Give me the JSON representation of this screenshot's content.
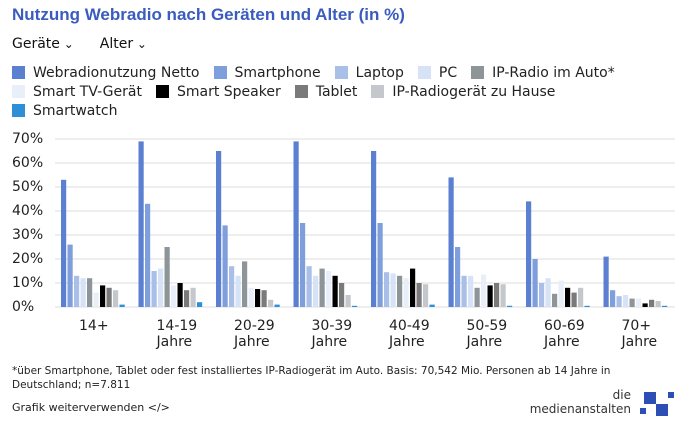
{
  "chart_data": {
    "type": "bar",
    "title": "Nutzung Webradio nach Geräten und Alter (in %)",
    "categories": [
      "14+",
      "14-19 Jahre",
      "20-29 Jahre",
      "30-39 Jahre",
      "40-49 Jahre",
      "50-59 Jahre",
      "60-69 Jahre",
      "70+ Jahre"
    ],
    "series": [
      {
        "name": "Webradionutzung Netto",
        "color": "#5b7fd1",
        "values": [
          53,
          69,
          65,
          69,
          65,
          54,
          44,
          21
        ]
      },
      {
        "name": "Smartphone",
        "color": "#7f9fdc",
        "values": [
          26,
          43,
          34,
          35,
          35,
          25,
          20,
          7
        ]
      },
      {
        "name": "Laptop",
        "color": "#a9bfe8",
        "values": [
          13,
          15,
          17,
          17,
          14.5,
          13,
          10,
          4.5
        ]
      },
      {
        "name": "PC",
        "color": "#d6e2f5",
        "values": [
          12,
          16,
          13,
          13,
          14,
          13,
          12,
          5
        ]
      },
      {
        "name": "IP-Radio im Auto*",
        "color": "#8e9599",
        "values": [
          12,
          25,
          19,
          16,
          13,
          8,
          5.5,
          3.5
        ]
      },
      {
        "name": "Smart TV-Gerät",
        "color": "#e8eff8",
        "values": [
          6,
          9,
          8,
          15,
          12,
          13.5,
          11,
          3.5
        ]
      },
      {
        "name": "Smart Speaker",
        "color": "#000000",
        "values": [
          9,
          10,
          7.5,
          13,
          16,
          9,
          8,
          1.5
        ]
      },
      {
        "name": "Tablet",
        "color": "#7a7a7a",
        "values": [
          8,
          7,
          7,
          10,
          10,
          10,
          6,
          3
        ]
      },
      {
        "name": "IP-Radiogerät zu Hause",
        "color": "#c4c8cc",
        "values": [
          7,
          8,
          3,
          5,
          9.5,
          9.5,
          8,
          2.5
        ]
      },
      {
        "name": "Smartwatch",
        "color": "#2e8fd6",
        "values": [
          1,
          2,
          1,
          0.5,
          1,
          0.5,
          0.5,
          0.5
        ]
      }
    ],
    "ylim": [
      0,
      70
    ],
    "yticks": [
      {
        "value": 0,
        "label": "0%"
      },
      {
        "value": 10,
        "label": "10%"
      },
      {
        "value": 20,
        "label": "20%"
      },
      {
        "value": 30,
        "label": "30%"
      },
      {
        "value": 40,
        "label": "40%"
      },
      {
        "value": 50,
        "label": "50%"
      },
      {
        "value": 60,
        "label": "60%"
      },
      {
        "value": 70,
        "label": "70%"
      }
    ],
    "grid": true
  },
  "controls": [
    "Geräte",
    "Alter"
  ],
  "footnote": "*über Smartphone, Tablet oder fest installiertes IP-Radiogerät im Auto. Basis: 70,542 Mio. Personen ab 14 Jahre in Deutschland; n=7.811",
  "footer_link": "Grafik weiterverwenden </>",
  "logo": [
    "die",
    "medienanstalten"
  ]
}
